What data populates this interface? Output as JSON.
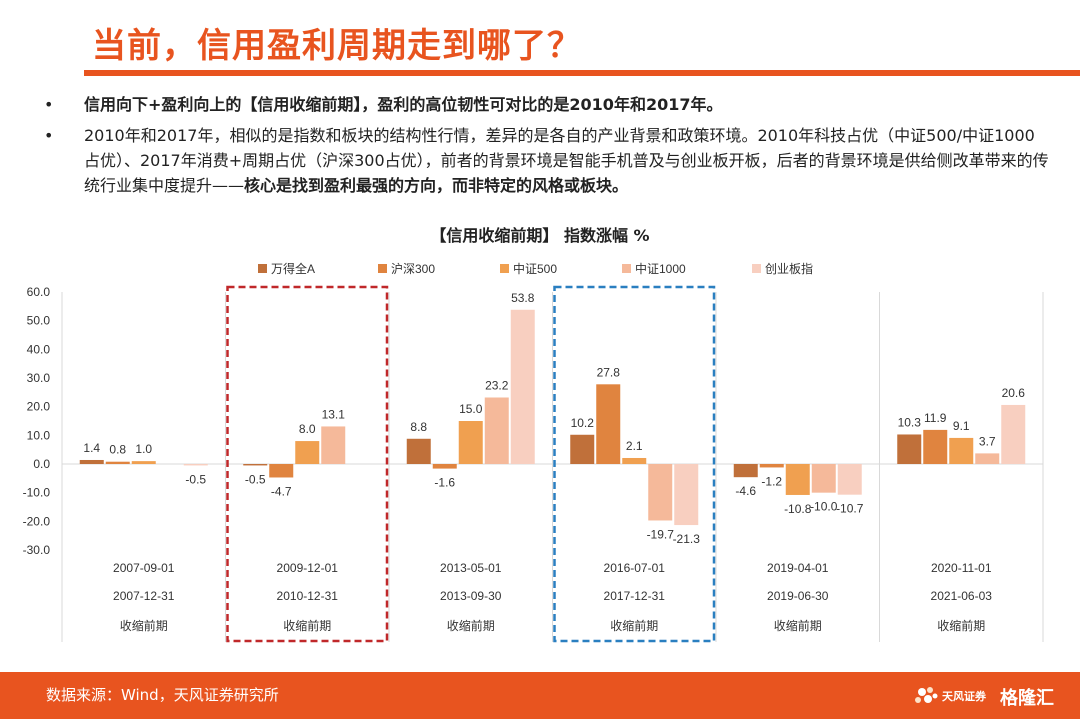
{
  "page": {
    "title": "当前，信用盈利周期走到哪了？",
    "bullets": [
      {
        "parts": [
          {
            "text": "信用向下+盈利向上的【信用收缩前期】，盈利的高位韧性可对比的是2010年和2017年。",
            "bold": true
          }
        ]
      },
      {
        "parts": [
          {
            "text": "2010年和2017年，相似的是指数和板块的结构性行情，差异的是各自的产业背景和政策环境。2010年科技占优（中证500/中证1000占优）、2017年消费+周期占优（沪深300占优），前者的背景环境是智能手机普及与创业板开板，后者的背景环境是供给侧改革带来的传统行业集中度提升——",
            "bold": false
          },
          {
            "text": "核心是找到盈利最强的方向，而非特定的风格或板块。",
            "bold": true
          }
        ]
      }
    ],
    "footer": {
      "source": "数据来源：Wind，天风证券研究所",
      "logo_text": "天风证券",
      "watermark": "格隆汇"
    }
  },
  "chart_data": {
    "type": "bar",
    "title": "【信用收缩前期】 指数涨幅 %",
    "ylim": [
      -30,
      60
    ],
    "yticks": [
      "60.0",
      "50.0",
      "40.0",
      "30.0",
      "20.0",
      "10.0",
      "0.0",
      "-10.0",
      "-20.0",
      "-30.0"
    ],
    "ytick_values": [
      60,
      50,
      40,
      30,
      20,
      10,
      0,
      -10,
      -20,
      -30
    ],
    "legend_position": "top",
    "periods": [
      {
        "start": "2007-09-01",
        "end": "2007-12-31",
        "label": "收缩前期"
      },
      {
        "start": "2009-12-01",
        "end": "2010-12-31",
        "label": "收缩前期"
      },
      {
        "start": "2013-05-01",
        "end": "2013-09-30",
        "label": "收缩前期"
      },
      {
        "start": "2016-07-01",
        "end": "2017-12-31",
        "label": "收缩前期"
      },
      {
        "start": "2019-04-01",
        "end": "2019-06-30",
        "label": "收缩前期"
      },
      {
        "start": "2020-11-01",
        "end": "2021-06-03",
        "label": "收缩前期"
      }
    ],
    "series": [
      {
        "name": "万得全A",
        "color": "#c0703a",
        "values": [
          1.4,
          -0.5,
          8.8,
          10.2,
          -4.6,
          10.3
        ]
      },
      {
        "name": "沪深300",
        "color": "#e0843f",
        "values": [
          0.8,
          -4.7,
          -1.6,
          27.8,
          -1.2,
          11.9
        ]
      },
      {
        "name": "中证500",
        "color": "#f0a050",
        "values": [
          1.0,
          8.0,
          15.0,
          2.1,
          -10.8,
          9.1
        ]
      },
      {
        "name": "中证1000",
        "color": "#f5b99a",
        "values": [
          null,
          13.1,
          23.2,
          -19.7,
          -10.0,
          3.7
        ]
      },
      {
        "name": "创业板指",
        "color": "#f8cfc0",
        "values": [
          -0.5,
          null,
          53.8,
          -21.3,
          -10.7,
          20.6
        ]
      }
    ],
    "value_labels": [
      [
        "1.4",
        "0.8",
        "1.0",
        "",
        "-0.5"
      ],
      [
        "-0.5",
        "-4.7",
        "8.0",
        "13.1",
        ""
      ],
      [
        "8.8",
        "-1.6",
        "15.0",
        "23.2",
        "53.8"
      ],
      [
        "10.2",
        "27.8",
        "2.1",
        "-19.7",
        "-21.3"
      ],
      [
        "-4.6",
        "-1.2",
        "-10.8",
        "-10.0",
        "-10.7"
      ],
      [
        "10.3",
        "11.9",
        "9.1",
        "3.7",
        "20.6"
      ]
    ],
    "highlight_boxes": [
      {
        "period_index": 1,
        "color": "#c0282a"
      },
      {
        "period_index": 3,
        "color": "#2a7fc0"
      }
    ]
  }
}
